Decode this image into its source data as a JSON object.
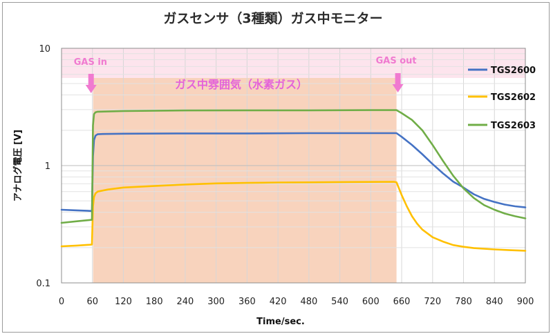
{
  "chart_data": {
    "type": "line",
    "title": "ガスセンサ（3種類）ガス中モニター",
    "xlabel": "Time/sec.",
    "ylabel": "アナログ電圧 [V]",
    "xlim": [
      0,
      900
    ],
    "ylim": [
      0.1,
      10
    ],
    "yscale": "log",
    "x_ticks": [
      0,
      60,
      120,
      180,
      240,
      300,
      360,
      420,
      480,
      540,
      600,
      660,
      720,
      780,
      840,
      900
    ],
    "y_ticks": [
      {
        "value": 0.1,
        "label": "0.1"
      },
      {
        "value": 1,
        "label": "1"
      },
      {
        "value": 10,
        "label": "10"
      }
    ],
    "grid": true,
    "legend_position": "right",
    "gas_window": {
      "start": 60,
      "end": 650
    },
    "annotations": {
      "gas_in": "GAS in",
      "gas_out": "GAS out",
      "atmosphere": "ガス中雰囲気（水素ガス）"
    },
    "series": [
      {
        "name": "TGS2600",
        "color": "#4472c4",
        "points": [
          [
            0,
            0.42
          ],
          [
            30,
            0.415
          ],
          [
            59,
            0.41
          ],
          [
            61,
            1.2
          ],
          [
            63,
            1.65
          ],
          [
            66,
            1.8
          ],
          [
            70,
            1.85
          ],
          [
            80,
            1.86
          ],
          [
            120,
            1.87
          ],
          [
            240,
            1.88
          ],
          [
            360,
            1.88
          ],
          [
            480,
            1.89
          ],
          [
            600,
            1.89
          ],
          [
            650,
            1.89
          ],
          [
            660,
            1.76
          ],
          [
            680,
            1.5
          ],
          [
            700,
            1.25
          ],
          [
            720,
            1.03
          ],
          [
            740,
            0.86
          ],
          [
            760,
            0.73
          ],
          [
            780,
            0.65
          ],
          [
            800,
            0.57
          ],
          [
            820,
            0.52
          ],
          [
            840,
            0.49
          ],
          [
            860,
            0.465
          ],
          [
            880,
            0.45
          ],
          [
            900,
            0.44
          ]
        ]
      },
      {
        "name": "TGS2602",
        "color": "#ffc000",
        "points": [
          [
            0,
            0.205
          ],
          [
            30,
            0.208
          ],
          [
            59,
            0.212
          ],
          [
            61,
            0.45
          ],
          [
            63,
            0.54
          ],
          [
            66,
            0.58
          ],
          [
            70,
            0.6
          ],
          [
            90,
            0.625
          ],
          [
            120,
            0.65
          ],
          [
            180,
            0.67
          ],
          [
            240,
            0.69
          ],
          [
            300,
            0.705
          ],
          [
            360,
            0.712
          ],
          [
            420,
            0.718
          ],
          [
            480,
            0.72
          ],
          [
            540,
            0.723
          ],
          [
            600,
            0.725
          ],
          [
            645,
            0.727
          ],
          [
            650,
            0.72
          ],
          [
            660,
            0.56
          ],
          [
            670,
            0.45
          ],
          [
            680,
            0.37
          ],
          [
            690,
            0.32
          ],
          [
            700,
            0.285
          ],
          [
            720,
            0.245
          ],
          [
            740,
            0.225
          ],
          [
            760,
            0.21
          ],
          [
            780,
            0.203
          ],
          [
            800,
            0.198
          ],
          [
            840,
            0.193
          ],
          [
            870,
            0.19
          ],
          [
            900,
            0.188
          ]
        ]
      },
      {
        "name": "TGS2603",
        "color": "#70ad47",
        "points": [
          [
            0,
            0.325
          ],
          [
            30,
            0.335
          ],
          [
            59,
            0.345
          ],
          [
            61,
            2.2
          ],
          [
            63,
            2.75
          ],
          [
            66,
            2.85
          ],
          [
            70,
            2.88
          ],
          [
            120,
            2.92
          ],
          [
            240,
            2.95
          ],
          [
            360,
            2.96
          ],
          [
            480,
            2.96
          ],
          [
            600,
            2.97
          ],
          [
            650,
            2.97
          ],
          [
            660,
            2.8
          ],
          [
            680,
            2.45
          ],
          [
            700,
            2.0
          ],
          [
            720,
            1.5
          ],
          [
            740,
            1.1
          ],
          [
            760,
            0.82
          ],
          [
            780,
            0.64
          ],
          [
            800,
            0.53
          ],
          [
            820,
            0.46
          ],
          [
            840,
            0.42
          ],
          [
            860,
            0.39
          ],
          [
            880,
            0.37
          ],
          [
            900,
            0.355
          ]
        ]
      }
    ]
  }
}
